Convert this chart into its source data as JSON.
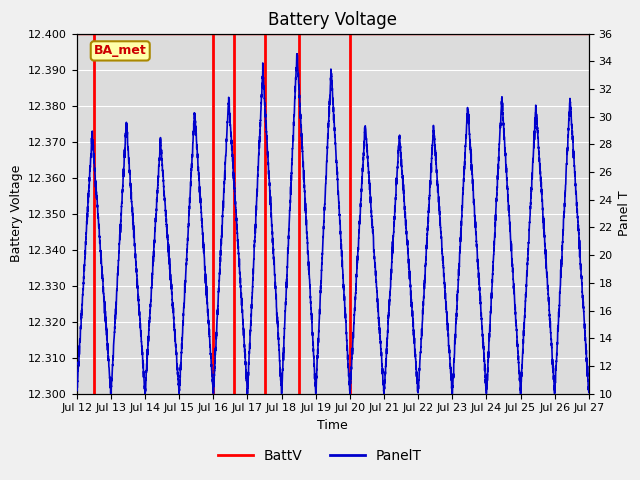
{
  "title": "Battery Voltage",
  "xlabel": "Time",
  "ylabel_left": "Battery Voltage",
  "ylabel_right": "Panel T",
  "annotation_text": "BA_met",
  "xlim_days": [
    0,
    15
  ],
  "ylim_left": [
    12.3,
    12.4
  ],
  "ylim_right": [
    10,
    36
  ],
  "x_tick_labels": [
    "Jul 12",
    "Jul 13",
    "Jul 14",
    "Jul 15",
    "Jul 16",
    "Jul 17",
    "Jul 18",
    "Jul 19",
    "Jul 20",
    "Jul 21",
    "Jul 22",
    "Jul 23",
    "Jul 24",
    "Jul 25",
    "Jul 26",
    "Jul 27"
  ],
  "x_tick_positions": [
    0,
    1,
    2,
    3,
    4,
    5,
    6,
    7,
    8,
    9,
    10,
    11,
    12,
    13,
    14,
    15
  ],
  "y_left_ticks": [
    12.3,
    12.31,
    12.32,
    12.33,
    12.34,
    12.35,
    12.36,
    12.37,
    12.38,
    12.39,
    12.4
  ],
  "y_right_ticks": [
    10,
    12,
    14,
    16,
    18,
    20,
    22,
    24,
    26,
    28,
    30,
    32,
    34,
    36
  ],
  "red_vlines": [
    0.5,
    4.0,
    4.6,
    5.5,
    6.5,
    8.0
  ],
  "fig_bg_color": "#f0f0f0",
  "plot_bg_color": "#dcdcdc",
  "grid_color": "#ffffff",
  "line_color_batt": "#ff0000",
  "line_color_panel": "#0000cc",
  "annotation_bg": "#ffffaa",
  "annotation_border": "#aa8800",
  "hline_color": "#ff0000",
  "legend_batt_color": "#ff0000",
  "legend_panel_color": "#0000cc",
  "title_fontsize": 12,
  "axis_label_fontsize": 9,
  "tick_fontsize": 8,
  "legend_fontsize": 10
}
